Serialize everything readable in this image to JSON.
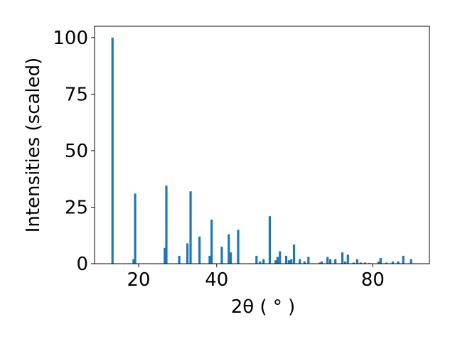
{
  "chart_data": {
    "type": "bar",
    "xlabel": "2θ ( ° )",
    "ylabel": "Intensities (scaled)",
    "x": [
      13.3,
      18.7,
      19.1,
      26.7,
      27.1,
      30.4,
      32.5,
      33.3,
      35.6,
      38.2,
      38.7,
      41.3,
      43.1,
      43.6,
      45.5,
      50.2,
      51.1,
      52.0,
      53.6,
      55.1,
      55.6,
      56.2,
      57.8,
      58.5,
      59.1,
      59.8,
      61.3,
      62.5,
      63.5,
      66.4,
      66.9,
      68.4,
      69.1,
      70.4,
      72.2,
      72.9,
      73.6,
      75.1,
      76.0,
      76.9,
      78.0,
      79.1,
      81.5,
      82.0,
      83.5,
      85.1,
      86.5,
      87.8,
      89.8
    ],
    "values": [
      100,
      2,
      31,
      7,
      34.5,
      3.5,
      9,
      32,
      12,
      3.5,
      19.5,
      7.5,
      13,
      5,
      15,
      3.5,
      1,
      2,
      21,
      1.5,
      3,
      5.5,
      3.5,
      1.5,
      2,
      8.5,
      2,
      1,
      3,
      0.5,
      1,
      3,
      2,
      2,
      5,
      1,
      4,
      0.5,
      2,
      0.5,
      0.5,
      0.3,
      1,
      2.5,
      0.5,
      1,
      1,
      3.5,
      2
    ],
    "color": "#1f77b4",
    "xlim": [
      8.7,
      94.5
    ],
    "xticks": [
      20,
      40,
      80
    ],
    "ylim": [
      0,
      105
    ],
    "yticks": [
      0,
      25,
      50,
      75,
      100
    ]
  }
}
